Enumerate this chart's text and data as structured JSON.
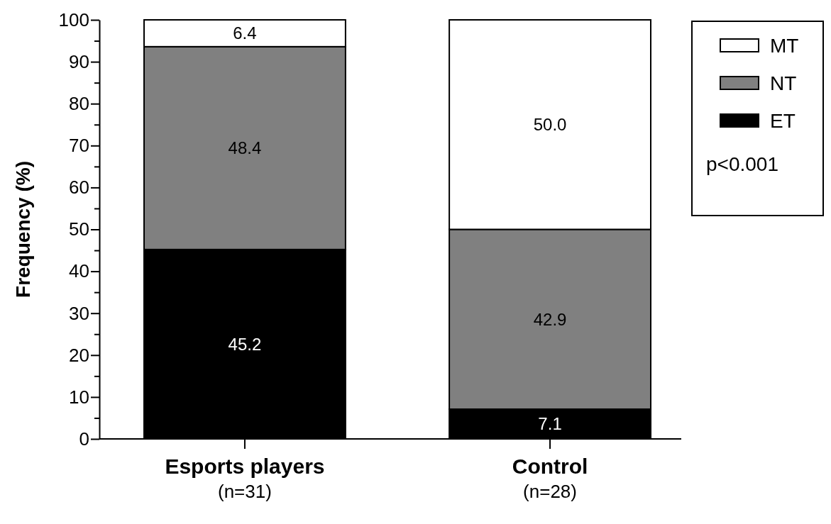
{
  "chart_data": {
    "type": "bar",
    "stacked": true,
    "ylabel": "Frequency (%)",
    "categories": [
      "Esports players\n(n=31)",
      "Control\n(n=28)"
    ],
    "series": [
      {
        "name": "ET",
        "color": "#000000",
        "values": [
          45.2,
          7.1
        ],
        "value_labels": [
          "45.2",
          "7.1"
        ]
      },
      {
        "name": "NT",
        "color": "#808080",
        "values": [
          48.4,
          42.9
        ],
        "value_labels": [
          "48.4",
          "42.9"
        ]
      },
      {
        "name": "MT",
        "color": "#ffffff",
        "values": [
          6.4,
          50.0
        ],
        "value_labels": [
          "6.4",
          "50.0"
        ]
      }
    ],
    "ylim": [
      0,
      100
    ],
    "yticks": [
      0,
      {
        "value": 5,
        "label": null
      },
      10,
      {
        "value": 15,
        "label": null
      },
      20,
      {
        "value": 25,
        "label": null
      },
      30,
      {
        "value": 35,
        "label": null
      },
      40,
      {
        "value": 45,
        "label": null
      },
      50,
      {
        "value": 55,
        "label": null
      },
      60,
      {
        "value": 65,
        "label": null
      },
      70,
      {
        "value": 75,
        "label": null
      },
      80,
      {
        "value": 85,
        "label": null
      },
      90,
      {
        "value": 95,
        "label": null
      },
      100
    ],
    "grid": false,
    "legend": "top right",
    "annotations": [
      "p<0.001"
    ]
  }
}
